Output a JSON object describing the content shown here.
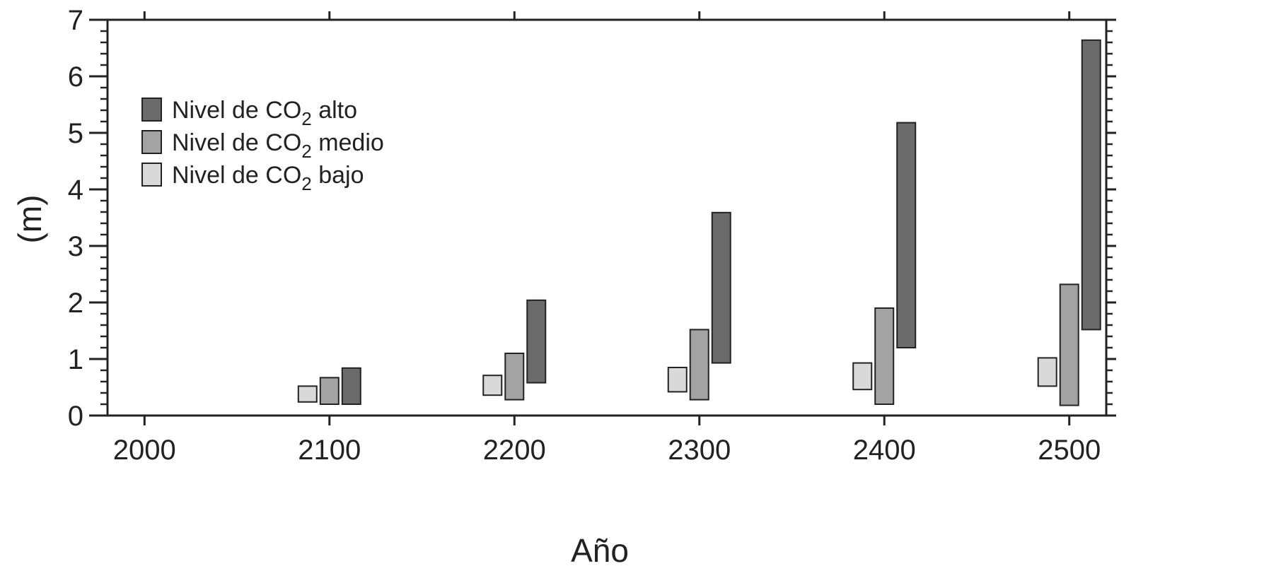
{
  "chart_data": {
    "type": "bar",
    "chart_style": "floating range bars (min-max)",
    "title": "",
    "xlabel": "Año",
    "ylabel": "(m)",
    "xlim": [
      1980,
      2520
    ],
    "ylim": [
      0,
      7
    ],
    "x_ticks": [
      "2000",
      "2100",
      "2200",
      "2300",
      "2400",
      "2500"
    ],
    "y_ticks": [
      "0",
      "1",
      "2",
      "3",
      "4",
      "5",
      "6",
      "7"
    ],
    "grid": false,
    "legend_position": "top-left",
    "categories": [
      "2100",
      "2200",
      "2300",
      "2400",
      "2500"
    ],
    "series": [
      {
        "name": "Nivel de CO2 bajo",
        "label_main": "Nivel de CO",
        "label_sub": "2",
        "label_tail": " bajo",
        "color": "#d9d9d9",
        "ranges": [
          [
            0.24,
            0.52
          ],
          [
            0.36,
            0.71
          ],
          [
            0.42,
            0.85
          ],
          [
            0.46,
            0.93
          ],
          [
            0.52,
            1.02
          ]
        ]
      },
      {
        "name": "Nivel de CO2 medio",
        "label_main": "Nivel de CO",
        "label_sub": "2",
        "label_tail": " medio",
        "color": "#a3a3a3",
        "ranges": [
          [
            0.2,
            0.67
          ],
          [
            0.28,
            1.1
          ],
          [
            0.28,
            1.52
          ],
          [
            0.2,
            1.9
          ],
          [
            0.18,
            2.32
          ]
        ]
      },
      {
        "name": "Nivel de CO2 alto",
        "label_main": "Nivel de CO",
        "label_sub": "2",
        "label_tail": " alto",
        "color": "#6b6b6b",
        "ranges": [
          [
            0.2,
            0.84
          ],
          [
            0.58,
            2.04
          ],
          [
            0.93,
            3.59
          ],
          [
            1.2,
            5.18
          ],
          [
            1.52,
            6.64
          ]
        ]
      }
    ],
    "legend_order": [
      2,
      1,
      0
    ]
  }
}
